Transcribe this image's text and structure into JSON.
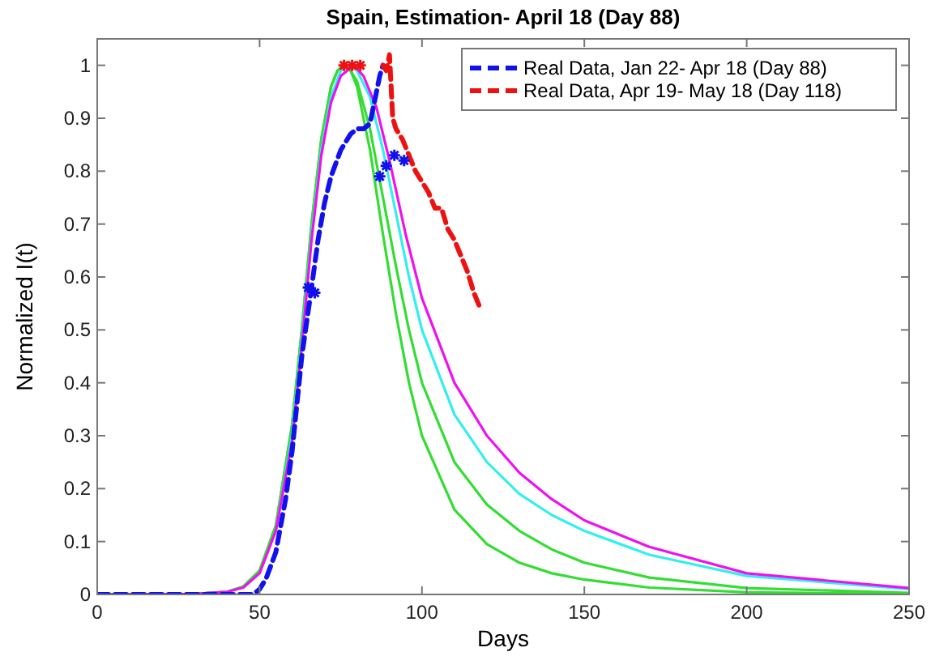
{
  "chart_data": {
    "type": "line",
    "title": "Spain, Estimation- April 18 (Day 88)",
    "xlabel": "Days",
    "ylabel": "Normalized I(t)",
    "xlim": [
      0,
      250
    ],
    "ylim": [
      0,
      1.05
    ],
    "xticks": [
      0,
      50,
      100,
      150,
      200,
      250
    ],
    "yticks": [
      0,
      0.1,
      0.2,
      0.3,
      0.4,
      0.5,
      0.6,
      0.7,
      0.8,
      0.9,
      1
    ],
    "grid": false,
    "legend": "top right",
    "series": [
      {
        "color": "#33dd33",
        "line_style": "solid",
        "x": [
          0,
          30,
          40,
          45,
          50,
          55,
          60,
          63,
          66,
          69,
          72,
          74,
          76,
          78,
          80,
          84,
          88,
          92,
          96,
          100,
          110,
          120,
          130,
          140,
          150,
          170,
          200,
          250
        ],
        "values": [
          0,
          0.001,
          0.005,
          0.015,
          0.045,
          0.13,
          0.32,
          0.5,
          0.7,
          0.86,
          0.96,
          0.99,
          1,
          0.99,
          0.96,
          0.84,
          0.68,
          0.53,
          0.4,
          0.3,
          0.16,
          0.095,
          0.06,
          0.04,
          0.028,
          0.013,
          0.004,
          0.001
        ]
      },
      {
        "color": "#33dd33",
        "line_style": "solid",
        "x": [
          0,
          30,
          40,
          45,
          50,
          55,
          60,
          63,
          66,
          69,
          72,
          74,
          76,
          78,
          80,
          84,
          88,
          92,
          96,
          100,
          110,
          120,
          130,
          140,
          150,
          170,
          200,
          250
        ],
        "values": [
          0,
          0.001,
          0.005,
          0.015,
          0.045,
          0.13,
          0.32,
          0.5,
          0.7,
          0.86,
          0.96,
          0.99,
          1,
          0.99,
          0.97,
          0.88,
          0.75,
          0.62,
          0.5,
          0.4,
          0.25,
          0.17,
          0.12,
          0.085,
          0.06,
          0.032,
          0.012,
          0.003
        ]
      },
      {
        "color": "#33eeee",
        "line_style": "solid",
        "x": [
          55,
          60,
          63,
          66,
          69,
          72,
          75,
          78,
          80,
          84,
          88,
          92,
          96,
          100,
          110,
          120,
          130,
          140,
          150,
          170,
          200,
          250
        ],
        "values": [
          0.12,
          0.3,
          0.48,
          0.68,
          0.84,
          0.94,
          0.99,
          1,
          0.99,
          0.94,
          0.84,
          0.72,
          0.6,
          0.5,
          0.34,
          0.25,
          0.19,
          0.15,
          0.12,
          0.075,
          0.035,
          0.01
        ]
      },
      {
        "color": "#ee11ee",
        "line_style": "solid",
        "x": [
          0,
          30,
          40,
          45,
          50,
          55,
          60,
          63,
          66,
          69,
          72,
          75,
          79,
          82,
          86,
          90,
          95,
          100,
          110,
          120,
          130,
          140,
          150,
          170,
          200,
          250
        ],
        "values": [
          0,
          0.001,
          0.005,
          0.013,
          0.04,
          0.12,
          0.29,
          0.47,
          0.67,
          0.83,
          0.93,
          0.98,
          1,
          0.98,
          0.92,
          0.82,
          0.68,
          0.56,
          0.4,
          0.3,
          0.23,
          0.18,
          0.14,
          0.09,
          0.04,
          0.012
        ]
      },
      {
        "name": "Real Data, Jan 22- Apr 18 (Day 88)",
        "color": "#1111ee",
        "line_style": "dashed",
        "x": [
          0,
          40,
          48,
          50,
          52,
          55,
          58,
          60,
          63,
          66,
          68,
          70,
          72,
          75,
          78,
          80,
          82,
          84,
          86,
          87,
          88
        ],
        "values": [
          0,
          0,
          0,
          0.01,
          0.03,
          0.08,
          0.18,
          0.27,
          0.45,
          0.58,
          0.67,
          0.74,
          0.79,
          0.84,
          0.87,
          0.88,
          0.88,
          0.89,
          0.95,
          0.98,
          1
        ]
      },
      {
        "name": "Real Data, Apr 19- May 18 (Day 118)",
        "color": "#ee1111",
        "line_style": "dashed",
        "x": [
          88,
          89,
          90,
          91,
          92,
          94,
          96,
          98,
          100,
          102,
          104,
          106,
          108,
          110,
          112,
          114,
          116,
          118
        ],
        "values": [
          1,
          0.99,
          1.02,
          0.9,
          0.88,
          0.86,
          0.83,
          0.8,
          0.78,
          0.76,
          0.73,
          0.73,
          0.69,
          0.67,
          0.64,
          0.61,
          0.57,
          0.54
        ]
      },
      {
        "type": "scatter",
        "color": "#1111ee",
        "marker": "cross",
        "x": [
          65,
          67,
          87,
          89,
          91.5,
          94.5
        ],
        "values": [
          0.58,
          0.57,
          0.79,
          0.81,
          0.83,
          0.82
        ]
      },
      {
        "type": "scatter",
        "color": "#ee1111",
        "marker": "cross",
        "x": [
          76,
          78.5,
          81
        ],
        "values": [
          1,
          1,
          1
        ]
      }
    ]
  }
}
